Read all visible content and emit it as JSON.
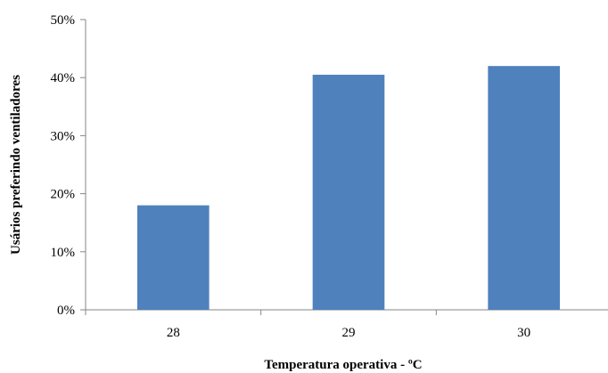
{
  "chart_data": {
    "type": "bar",
    "title": "",
    "xlabel": "Temperatura operativa - ºC",
    "ylabel": "Usários preferindo ventiladores",
    "categories": [
      "28",
      "29",
      "30"
    ],
    "series": [
      {
        "values": [
          18.0,
          40.5,
          42.0
        ]
      }
    ],
    "ylim": [
      0,
      50
    ],
    "yticks": [
      0,
      10,
      20,
      30,
      40,
      50
    ],
    "ytick_labels": [
      "0%",
      "10%",
      "20%",
      "30%",
      "40%",
      "50%"
    ],
    "grid": false,
    "legend": "none",
    "colors": {
      "bar": "#4f81bd",
      "axis": "#868686"
    }
  }
}
